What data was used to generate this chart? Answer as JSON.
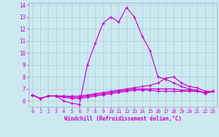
{
  "xlabel": "Windchill (Refroidissement éolien,°C)",
  "background_color": "#cce9f0",
  "grid_color": "#aaccdd",
  "line_color": "#cc00cc",
  "spine_color": "#aaaacc",
  "xlim": [
    -0.5,
    23.5
  ],
  "ylim": [
    5.5,
    14.2
  ],
  "xticks": [
    0,
    1,
    2,
    3,
    4,
    5,
    6,
    7,
    8,
    9,
    10,
    11,
    12,
    13,
    14,
    15,
    16,
    17,
    18,
    19,
    20,
    21,
    22,
    23
  ],
  "yticks": [
    6,
    7,
    8,
    9,
    10,
    11,
    12,
    13,
    14
  ],
  "series": [
    {
      "x": [
        0,
        1,
        2,
        3,
        4,
        5,
        6,
        7,
        8,
        9,
        10,
        11,
        12,
        13,
        14,
        15,
        16,
        17,
        18,
        19,
        20,
        21,
        22,
        23
      ],
      "y": [
        6.5,
        6.2,
        6.4,
        6.4,
        6.0,
        5.8,
        5.7,
        9.0,
        10.8,
        12.5,
        13.0,
        12.6,
        13.8,
        13.0,
        11.4,
        10.2,
        8.0,
        7.8,
        7.5,
        7.2,
        7.0,
        6.9,
        6.6,
        6.8
      ]
    },
    {
      "x": [
        0,
        1,
        2,
        3,
        4,
        5,
        6,
        7,
        8,
        9,
        10,
        11,
        12,
        13,
        14,
        15,
        16,
        17,
        18,
        19,
        20,
        21,
        22,
        23
      ],
      "y": [
        6.5,
        6.2,
        6.4,
        6.4,
        6.4,
        6.4,
        6.4,
        6.5,
        6.6,
        6.7,
        6.8,
        6.9,
        7.0,
        7.1,
        7.2,
        7.3,
        7.5,
        7.9,
        8.0,
        7.5,
        7.2,
        7.1,
        6.8,
        6.8
      ]
    },
    {
      "x": [
        0,
        1,
        2,
        3,
        4,
        5,
        6,
        7,
        8,
        9,
        10,
        11,
        12,
        13,
        14,
        15,
        16,
        17,
        18,
        19,
        20,
        21,
        22,
        23
      ],
      "y": [
        6.5,
        6.2,
        6.4,
        6.4,
        6.4,
        6.3,
        6.3,
        6.4,
        6.5,
        6.6,
        6.7,
        6.8,
        6.9,
        7.0,
        7.0,
        7.0,
        7.0,
        7.0,
        7.0,
        6.9,
        6.9,
        6.8,
        6.7,
        6.8
      ]
    },
    {
      "x": [
        0,
        1,
        2,
        3,
        4,
        5,
        6,
        7,
        8,
        9,
        10,
        11,
        12,
        13,
        14,
        15,
        16,
        17,
        18,
        19,
        20,
        21,
        22,
        23
      ],
      "y": [
        6.5,
        6.2,
        6.4,
        6.4,
        6.3,
        6.2,
        6.2,
        6.3,
        6.4,
        6.5,
        6.6,
        6.7,
        6.8,
        6.9,
        6.9,
        6.9,
        6.8,
        6.8,
        6.8,
        6.8,
        6.8,
        6.8,
        6.7,
        6.8
      ]
    }
  ]
}
